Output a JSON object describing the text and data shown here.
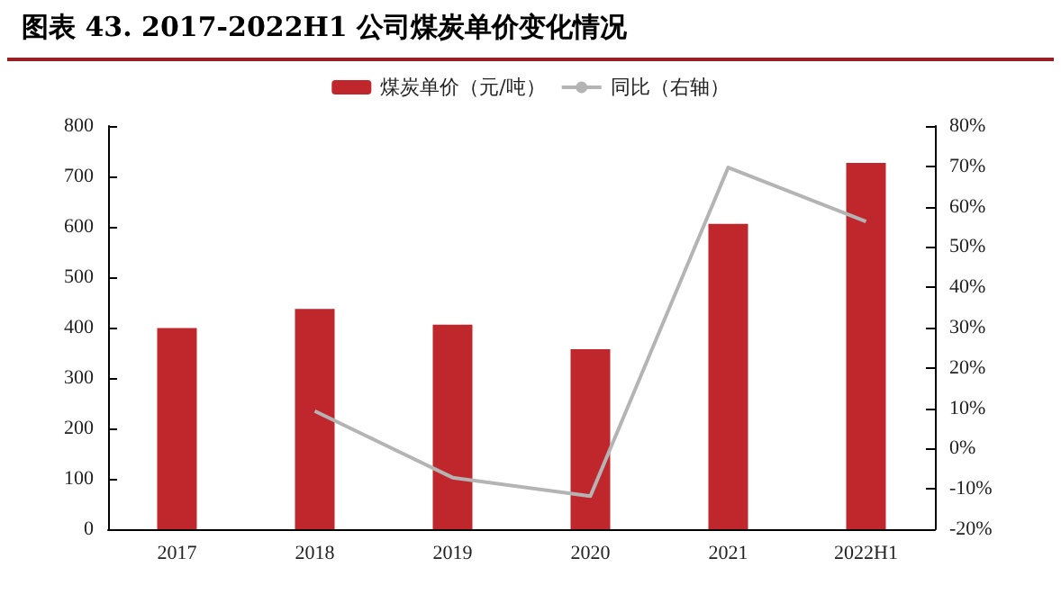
{
  "chart_data": {
    "type": "bar",
    "title": "图表 43. 2017-2022H1 公司煤炭单价变化情况",
    "categories": [
      "2017",
      "2018",
      "2019",
      "2020",
      "2021",
      "2022H1"
    ],
    "series": [
      {
        "name": "煤炭单价（元/吨）",
        "color": "#c0272d",
        "values": [
          399,
          437,
          406,
          357,
          606,
          727
        ]
      },
      {
        "name": "同比（右轴）",
        "type": "line",
        "axis": "y2",
        "color": "#b4b4b4",
        "values": [
          null,
          9.3,
          -7.2,
          -11.8,
          69.7,
          56.3
        ]
      }
    ],
    "ylim": [
      0,
      800
    ],
    "yticks": [
      0,
      100,
      200,
      300,
      400,
      500,
      600,
      700,
      800
    ],
    "y2lim": [
      -20,
      80
    ],
    "y2ticks": [
      {
        "value": -20,
        "label": "-20%"
      },
      {
        "value": -10,
        "label": "-10%"
      },
      {
        "value": 0,
        "label": "0%"
      },
      {
        "value": 10,
        "label": "10%"
      },
      {
        "value": 20,
        "label": "20%"
      },
      {
        "value": 30,
        "label": "30%"
      },
      {
        "value": 40,
        "label": "40%"
      },
      {
        "value": 50,
        "label": "50%"
      },
      {
        "value": 60,
        "label": "60%"
      },
      {
        "value": 70,
        "label": "70%"
      },
      {
        "value": 80,
        "label": "80%"
      }
    ],
    "legend": "top",
    "grid": false,
    "marker": "none",
    "line_style": "solid"
  }
}
